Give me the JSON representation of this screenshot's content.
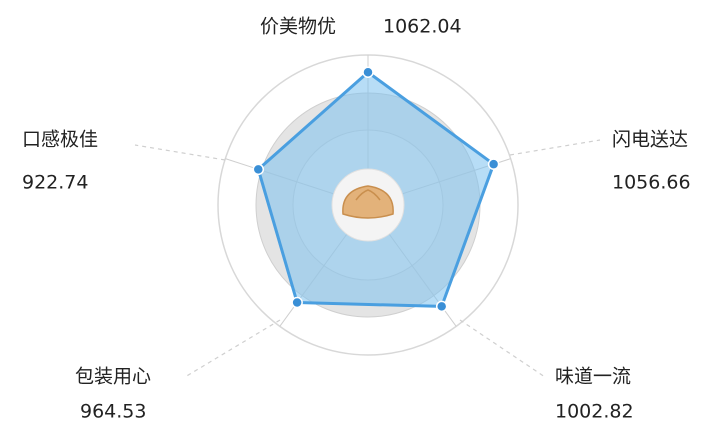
{
  "chart_data": {
    "type": "radar",
    "categories": [
      "价美物优",
      "闪电送达",
      "味道一流",
      "包装用心",
      "口感极佳"
    ],
    "values": [
      1062.04,
      1056.66,
      1002.82,
      964.53,
      922.74
    ],
    "rlim": [
      0,
      1200
    ],
    "color": "#4a9fe0"
  }
}
